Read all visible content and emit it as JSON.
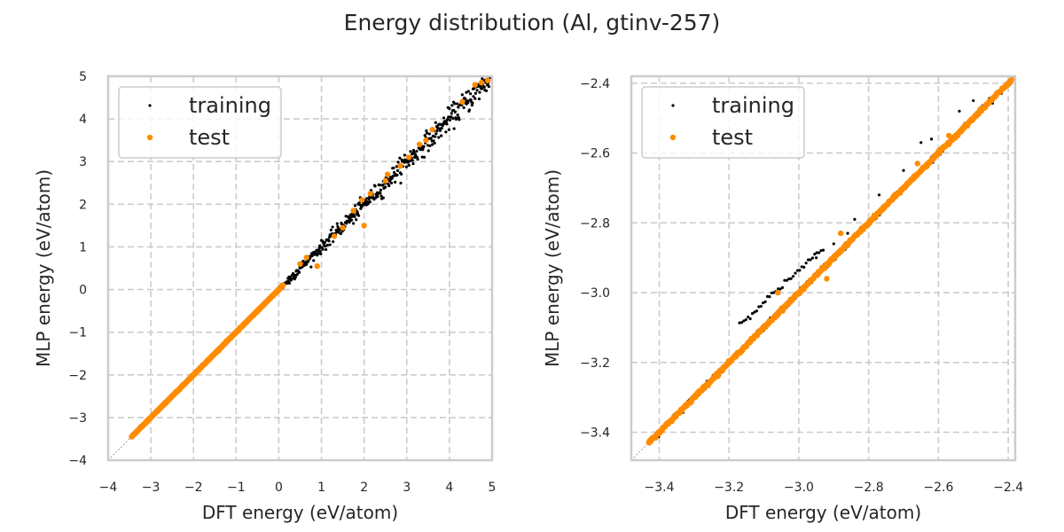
{
  "chart_data": [
    {
      "type": "scatter",
      "title": "Energy distribution (Al, gtinv-257)",
      "xlabel": "DFT energy (eV/atom)",
      "ylabel": "MLP energy (eV/atom)",
      "xlim": [
        -4,
        5
      ],
      "ylim": [
        -4,
        5
      ],
      "xticks": [
        -4,
        -3,
        -2,
        -1,
        0,
        1,
        2,
        3,
        4,
        5
      ],
      "yticks": [
        -4,
        -3,
        -2,
        -1,
        0,
        1,
        2,
        3,
        4,
        5
      ],
      "xtick_labels": [
        "−4",
        "−3",
        "−2",
        "−1",
        "0",
        "1",
        "2",
        "3",
        "4",
        "5"
      ],
      "ytick_labels": [
        "−4",
        "−3",
        "−2",
        "−1",
        "0",
        "1",
        "2",
        "3",
        "4",
        "5"
      ],
      "grid": true,
      "legend": {
        "position": "top-left",
        "entries": [
          "training",
          "test"
        ]
      },
      "diagonal_reference": true,
      "series": [
        {
          "name": "training",
          "color": "#000000",
          "marker_size": "small",
          "dense_range": [
            -3.45,
            4.95
          ],
          "scatter_sd_per_unit_energy": 0.025,
          "outliers": [
            [
              0.25,
              0.15
            ],
            [
              1.2,
              1.05
            ],
            [
              2.45,
              2.15
            ],
            [
              3.15,
              2.95
            ],
            [
              3.6,
              3.4
            ],
            [
              4.1,
              4.2
            ],
            [
              4.4,
              4.35
            ],
            [
              2.95,
              3.15
            ],
            [
              1.75,
              1.55
            ]
          ]
        },
        {
          "name": "test",
          "color": "#ff8c00",
          "marker_size": "medium",
          "dense_range": [
            -3.45,
            0.1
          ],
          "sparse_points": [
            [
              0.5,
              0.6
            ],
            [
              0.65,
              0.75
            ],
            [
              0.9,
              0.55
            ],
            [
              1.3,
              1.25
            ],
            [
              1.5,
              1.45
            ],
            [
              1.75,
              1.85
            ],
            [
              2.0,
              1.5
            ],
            [
              1.95,
              2.1
            ],
            [
              2.15,
              2.25
            ],
            [
              2.5,
              2.55
            ],
            [
              2.55,
              2.7
            ],
            [
              2.85,
              2.9
            ],
            [
              3.05,
              3.1
            ],
            [
              3.3,
              3.4
            ],
            [
              3.45,
              3.5
            ],
            [
              3.6,
              3.75
            ],
            [
              4.3,
              4.4
            ],
            [
              4.6,
              4.8
            ],
            [
              4.75,
              4.85
            ],
            [
              4.9,
              4.9
            ]
          ]
        }
      ]
    },
    {
      "type": "scatter",
      "xlabel": "DFT energy (eV/atom)",
      "ylabel": "MLP energy (eV/atom)",
      "xlim": [
        -3.48,
        -2.38
      ],
      "ylim": [
        -3.48,
        -2.38
      ],
      "xticks": [
        -3.4,
        -3.2,
        -3.0,
        -2.8,
        -2.6,
        -2.4
      ],
      "yticks": [
        -3.4,
        -3.2,
        -3.0,
        -2.8,
        -2.6,
        -2.4
      ],
      "xtick_labels": [
        "−3.4",
        "−3.2",
        "−3.0",
        "−2.8",
        "−2.6",
        "−2.4"
      ],
      "ytick_labels": [
        "−3.4",
        "−3.2",
        "−3.0",
        "−2.8",
        "−2.6",
        "−2.4"
      ],
      "grid": true,
      "legend": {
        "position": "top-left",
        "entries": [
          "training",
          "test"
        ]
      },
      "diagonal_reference": true,
      "series": [
        {
          "name": "training",
          "color": "#000000",
          "marker_size": "small",
          "dense_range": [
            -3.43,
            -2.39
          ],
          "offset_branch": {
            "x_range": [
              -3.17,
              -2.93
            ],
            "y_offset": 0.08
          },
          "outliers": [
            [
              -2.95,
              -2.9
            ],
            [
              -2.9,
              -2.86
            ],
            [
              -2.86,
              -2.83
            ],
            [
              -2.84,
              -2.79
            ],
            [
              -2.77,
              -2.72
            ],
            [
              -2.7,
              -2.65
            ],
            [
              -2.65,
              -2.57
            ],
            [
              -2.62,
              -2.56
            ],
            [
              -2.54,
              -2.48
            ],
            [
              -2.5,
              -2.45
            ]
          ]
        },
        {
          "name": "test",
          "color": "#ff8c00",
          "marker_size": "medium",
          "dense_range": [
            -3.43,
            -2.39
          ],
          "sparse_points": [
            [
              -3.06,
              -3.0
            ],
            [
              -2.88,
              -2.83
            ],
            [
              -2.92,
              -2.96
            ],
            [
              -2.57,
              -2.55
            ],
            [
              -2.66,
              -2.63
            ]
          ]
        }
      ]
    }
  ]
}
